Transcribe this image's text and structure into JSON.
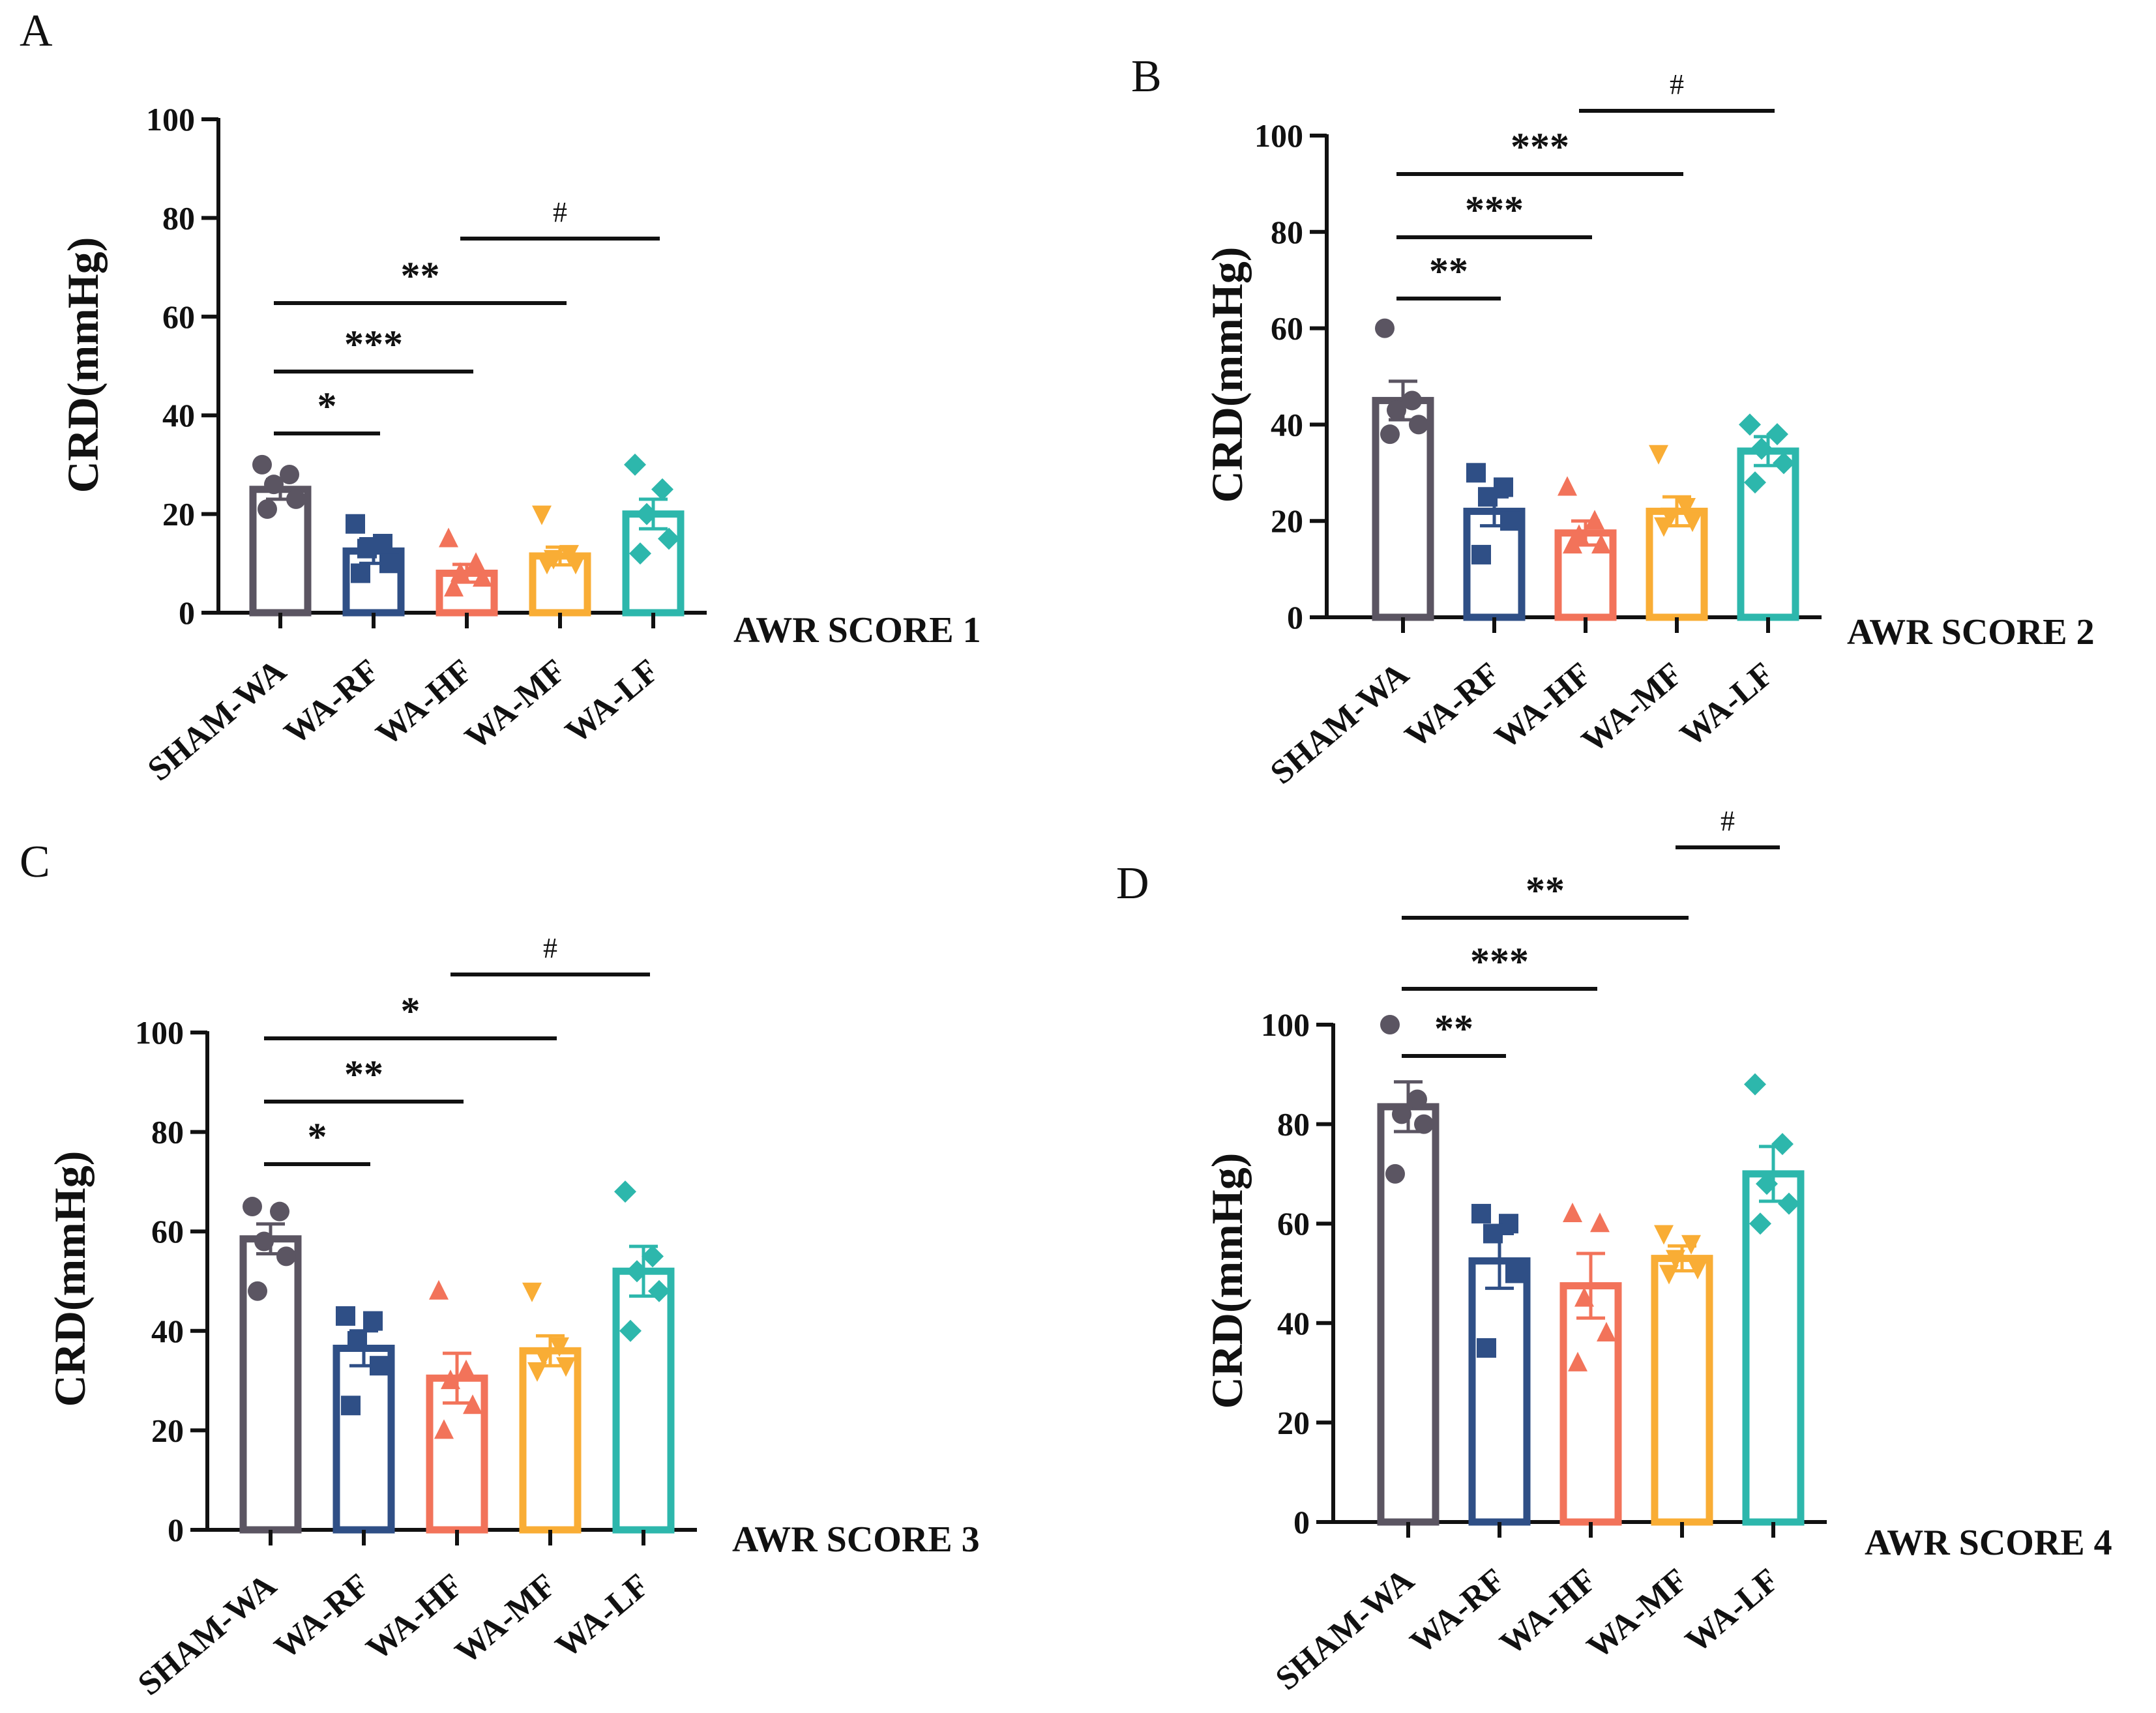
{
  "group_colors": {
    "SHAM-WA": "#5b5562",
    "WA-RF": "#2f4f86",
    "WA-HF": "#f2735a",
    "WA-MF": "#f9ad35",
    "WA-LF": "#2db7ac"
  },
  "chart_data": [
    {
      "panel": "A",
      "type": "bar",
      "ylabel": "CRD(mmHg)",
      "score_label": "AWR SCORE 1",
      "ylim": [
        0,
        100
      ],
      "yticks": [
        "0",
        "20",
        "40",
        "60",
        "80",
        "100"
      ],
      "categories": [
        "SHAM-WA",
        "WA-RF",
        "WA-HF",
        "WA-MF",
        "WA-LF"
      ],
      "means": [
        25,
        12.5,
        8,
        11.5,
        20
      ],
      "sem": [
        2,
        2.5,
        1.8,
        1.8,
        3
      ],
      "points": [
        [
          30,
          28,
          26,
          23,
          21
        ],
        [
          18,
          14,
          13,
          10,
          8
        ],
        [
          15,
          10,
          8,
          7,
          5
        ],
        [
          20,
          12,
          11,
          10,
          10
        ],
        [
          30,
          25,
          20,
          15,
          12
        ]
      ],
      "marker_shapes": [
        "circle",
        "square",
        "triangle-up",
        "triangle-down",
        "diamond"
      ],
      "comparisons": [
        {
          "from": "SHAM-WA",
          "to": "WA-RF",
          "label": "*"
        },
        {
          "from": "SHAM-WA",
          "to": "WA-HF",
          "label": "***"
        },
        {
          "from": "SHAM-WA",
          "to": "WA-MF",
          "label": "**"
        },
        {
          "from": "WA-HF",
          "to": "WA-LF",
          "label": "#"
        }
      ]
    },
    {
      "panel": "B",
      "type": "bar",
      "ylabel": "CRD(mmHg)",
      "score_label": "AWR SCORE 2",
      "ylim": [
        0,
        100
      ],
      "yticks": [
        "0",
        "20",
        "40",
        "60",
        "80",
        "100"
      ],
      "categories": [
        "SHAM-WA",
        "WA-RF",
        "WA-HF",
        "WA-MF",
        "WA-LF"
      ],
      "means": [
        45,
        22,
        17.5,
        22,
        34.5
      ],
      "sem": [
        4,
        3,
        2.5,
        3,
        3
      ],
      "points": [
        [
          60,
          45,
          43,
          40,
          38
        ],
        [
          30,
          27,
          25,
          20,
          13
        ],
        [
          27,
          20,
          17,
          15,
          15
        ],
        [
          34,
          23,
          21,
          20,
          19
        ],
        [
          40,
          38,
          35,
          32,
          28
        ]
      ],
      "marker_shapes": [
        "circle",
        "square",
        "triangle-up",
        "triangle-down",
        "diamond"
      ],
      "comparisons": [
        {
          "from": "SHAM-WA",
          "to": "WA-RF",
          "label": "**"
        },
        {
          "from": "SHAM-WA",
          "to": "WA-HF",
          "label": "***"
        },
        {
          "from": "SHAM-WA",
          "to": "WA-MF",
          "label": "***"
        },
        {
          "from": "WA-HF",
          "to": "WA-LF",
          "label": "#"
        }
      ]
    },
    {
      "panel": "C",
      "type": "bar",
      "ylabel": "CRD(mmHg)",
      "score_label": "AWR SCORE 3",
      "ylim": [
        0,
        100
      ],
      "yticks": [
        "0",
        "20",
        "40",
        "60",
        "80",
        "100"
      ],
      "categories": [
        "SHAM-WA",
        "WA-RF",
        "WA-HF",
        "WA-MF",
        "WA-LF"
      ],
      "means": [
        58.5,
        36.5,
        30.5,
        36,
        52
      ],
      "sem": [
        3,
        3.5,
        5,
        3,
        5
      ],
      "points": [
        [
          65,
          64,
          58,
          55,
          48
        ],
        [
          43,
          42,
          38,
          33,
          25
        ],
        [
          48,
          32,
          30,
          25,
          20
        ],
        [
          48,
          37,
          35,
          33,
          32
        ],
        [
          68,
          55,
          52,
          48,
          40
        ]
      ],
      "marker_shapes": [
        "circle",
        "square",
        "triangle-up",
        "triangle-down",
        "diamond"
      ],
      "comparisons": [
        {
          "from": "SHAM-WA",
          "to": "WA-RF",
          "label": "*"
        },
        {
          "from": "SHAM-WA",
          "to": "WA-HF",
          "label": "**"
        },
        {
          "from": "SHAM-WA",
          "to": "WA-MF",
          "label": "*"
        },
        {
          "from": "WA-HF",
          "to": "WA-LF",
          "label": "#"
        }
      ]
    },
    {
      "panel": "D",
      "type": "bar",
      "ylabel": "CRD(mmHg)",
      "score_label": "AWR SCORE 4",
      "ylim": [
        0,
        100
      ],
      "yticks": [
        "0",
        "20",
        "40",
        "60",
        "80",
        "100"
      ],
      "categories": [
        "SHAM-WA",
        "WA-RF",
        "WA-HF",
        "WA-MF",
        "WA-LF"
      ],
      "means": [
        83.5,
        52.5,
        47.5,
        53,
        70
      ],
      "sem": [
        5,
        5.5,
        6.5,
        2.5,
        5.5
      ],
      "points": [
        [
          100,
          85,
          82,
          80,
          70
        ],
        [
          62,
          60,
          58,
          50,
          35
        ],
        [
          62,
          60,
          45,
          38,
          32
        ],
        [
          58,
          56,
          53,
          51,
          50
        ],
        [
          88,
          76,
          68,
          64,
          60
        ]
      ],
      "marker_shapes": [
        "circle",
        "square",
        "triangle-up",
        "triangle-down",
        "diamond"
      ],
      "comparisons": [
        {
          "from": "SHAM-WA",
          "to": "WA-RF",
          "label": "**"
        },
        {
          "from": "SHAM-WA",
          "to": "WA-HF",
          "label": "***"
        },
        {
          "from": "SHAM-WA",
          "to": "WA-MF",
          "label": "**"
        },
        {
          "from": "WA-MF",
          "to": "WA-LF",
          "label": "#"
        }
      ]
    }
  ]
}
